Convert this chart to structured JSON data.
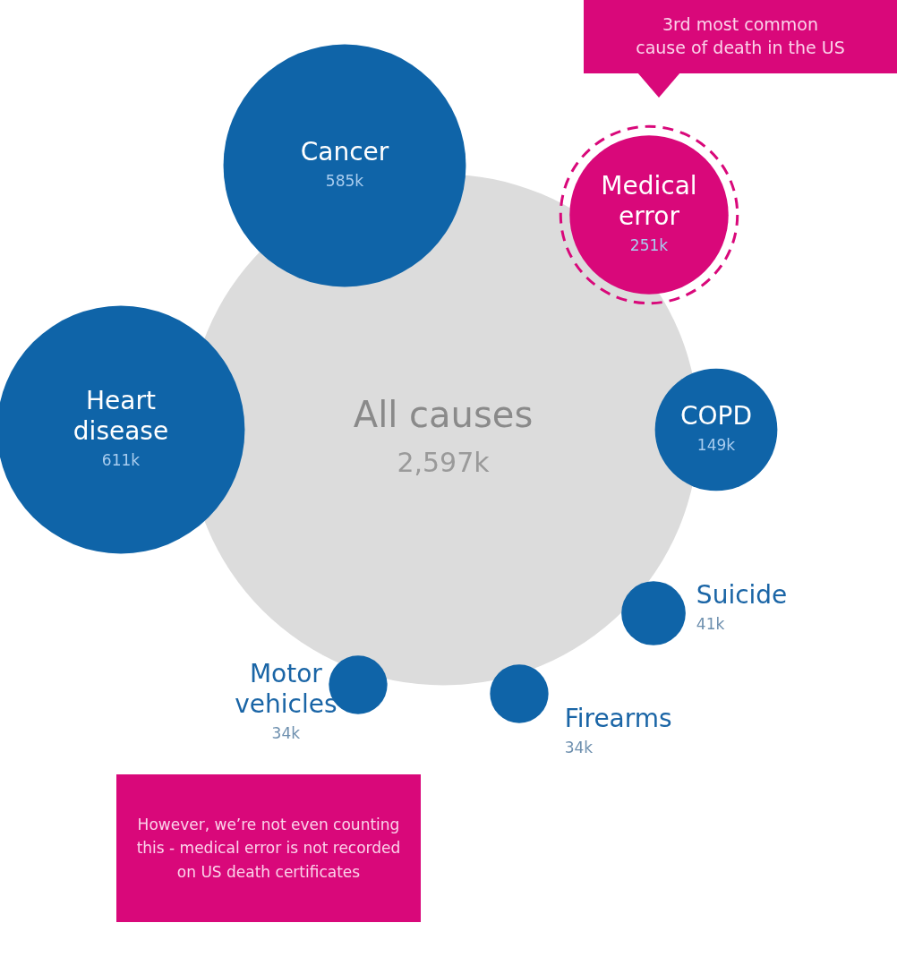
{
  "chart_data": {
    "type": "other",
    "categories": [
      "All causes",
      "Cancer",
      "Medical error",
      "Heart disease",
      "COPD",
      "Suicide",
      "Motor vehicles",
      "Firearms"
    ],
    "values": [
      2597,
      585,
      251,
      611,
      149,
      41,
      34,
      34
    ],
    "value_labels": [
      "2,597k",
      "585k",
      "251k",
      "611k",
      "149k",
      "41k",
      "34k",
      "34k"
    ],
    "colors": [
      "#dcdcdc",
      "#0f64a8",
      "#d9087a",
      "#0f64a8",
      "#0f64a8",
      "#0f64a8",
      "#0f64a8",
      "#0f64a8"
    ],
    "annotations": [
      "3rd most common cause of death in the US",
      "However, we’re not even counting this - medical error is not recorded on US death certificates"
    ]
  }
}
